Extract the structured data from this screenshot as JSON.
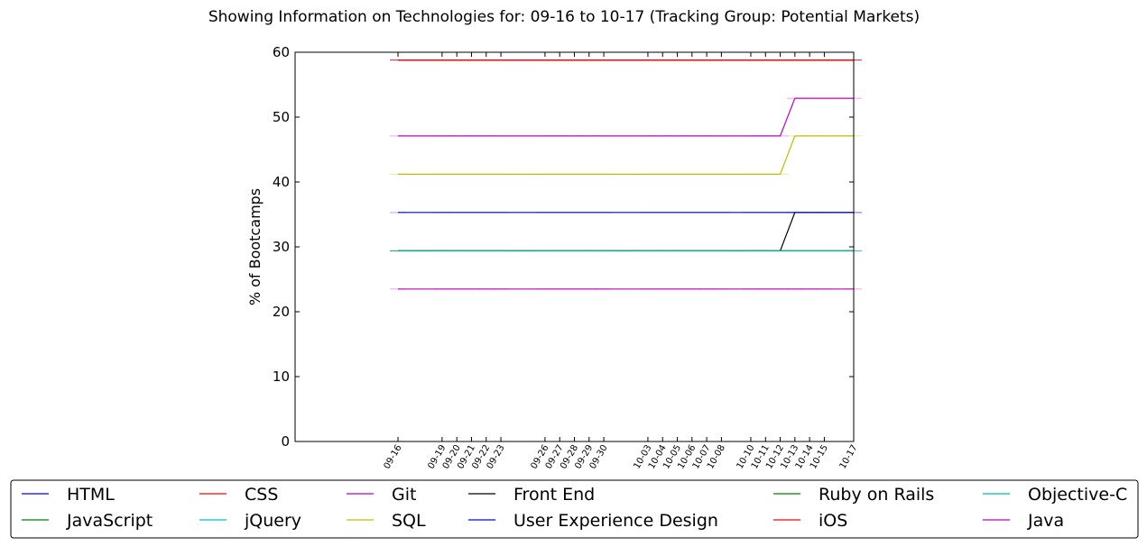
{
  "chart_data": {
    "type": "line",
    "title": "Showing Information on Technologies for: 09-16 to 10-17 (Tracking Group: Potential Markets)",
    "xlabel": "",
    "ylabel": "% of Bootcamps",
    "ylim": [
      0,
      60
    ],
    "yticks": [
      0,
      10,
      20,
      30,
      40,
      50,
      60
    ],
    "xlim": [
      "2016-09-09",
      "2016-10-17"
    ],
    "x": [
      "09-16",
      "09-19",
      "09-20",
      "09-21",
      "09-22",
      "09-23",
      "09-26",
      "09-27",
      "09-28",
      "09-29",
      "09-30",
      "10-03",
      "10-04",
      "10-05",
      "10-06",
      "10-07",
      "10-08",
      "10-10",
      "10-11",
      "10-12",
      "10-13",
      "10-14",
      "10-15",
      "10-17"
    ],
    "grid": false,
    "legend_position": "bottom",
    "legend_columns": 6,
    "series": [
      {
        "name": "HTML",
        "color": "#0000ff",
        "values": [
          58.8,
          58.8,
          58.8,
          58.8,
          58.8,
          58.8,
          58.8,
          58.8,
          58.8,
          58.8,
          58.8,
          58.8,
          58.8,
          58.8,
          58.8,
          58.8,
          58.8,
          58.8,
          58.8,
          58.8,
          58.8,
          58.8,
          58.8,
          58.8
        ]
      },
      {
        "name": "JavaScript",
        "color": "#008000",
        "values": [
          58.8,
          58.8,
          58.8,
          58.8,
          58.8,
          58.8,
          58.8,
          58.8,
          58.8,
          58.8,
          58.8,
          58.8,
          58.8,
          58.8,
          58.8,
          58.8,
          58.8,
          58.8,
          58.8,
          58.8,
          58.8,
          58.8,
          58.8,
          58.8
        ]
      },
      {
        "name": "CSS",
        "color": "#ff0000",
        "values": [
          58.8,
          58.8,
          58.8,
          58.8,
          58.8,
          58.8,
          58.8,
          58.8,
          58.8,
          58.8,
          58.8,
          58.8,
          58.8,
          58.8,
          58.8,
          58.8,
          58.8,
          58.8,
          58.8,
          58.8,
          58.8,
          58.8,
          58.8,
          58.8
        ]
      },
      {
        "name": "jQuery",
        "color": "#00bfbf",
        "values": [
          29.4,
          29.4,
          29.4,
          29.4,
          29.4,
          29.4,
          29.4,
          29.4,
          29.4,
          29.4,
          29.4,
          29.4,
          29.4,
          29.4,
          29.4,
          29.4,
          29.4,
          29.4,
          29.4,
          29.4,
          29.4,
          29.4,
          29.4,
          29.4
        ]
      },
      {
        "name": "Git",
        "color": "#bf00bf",
        "values": [
          47.1,
          47.1,
          47.1,
          47.1,
          47.1,
          47.1,
          47.1,
          47.1,
          47.1,
          47.1,
          47.1,
          47.1,
          47.1,
          47.1,
          47.1,
          47.1,
          47.1,
          47.1,
          47.1,
          47.1,
          52.9,
          52.9,
          52.9,
          52.9
        ]
      },
      {
        "name": "SQL",
        "color": "#bfbf00",
        "values": [
          41.2,
          41.2,
          41.2,
          41.2,
          41.2,
          41.2,
          41.2,
          41.2,
          41.2,
          41.2,
          41.2,
          41.2,
          41.2,
          41.2,
          41.2,
          41.2,
          41.2,
          41.2,
          41.2,
          41.2,
          47.1,
          47.1,
          47.1,
          47.1
        ]
      },
      {
        "name": "Front End",
        "color": "#000000",
        "values": [
          29.4,
          29.4,
          29.4,
          29.4,
          29.4,
          29.4,
          29.4,
          29.4,
          29.4,
          29.4,
          29.4,
          29.4,
          29.4,
          29.4,
          29.4,
          29.4,
          29.4,
          29.4,
          29.4,
          29.4,
          35.3,
          35.3,
          35.3,
          35.3
        ]
      },
      {
        "name": "User Experience Design",
        "color": "#0000ff",
        "values": [
          35.3,
          35.3,
          35.3,
          35.3,
          35.3,
          35.3,
          35.3,
          35.3,
          35.3,
          35.3,
          35.3,
          35.3,
          35.3,
          35.3,
          35.3,
          35.3,
          35.3,
          35.3,
          35.3,
          35.3,
          35.3,
          35.3,
          35.3,
          35.3
        ]
      },
      {
        "name": "Ruby on Rails",
        "color": "#008000",
        "values": [
          29.4,
          29.4,
          29.4,
          29.4,
          29.4,
          29.4,
          29.4,
          29.4,
          29.4,
          29.4,
          29.4,
          29.4,
          29.4,
          29.4,
          29.4,
          29.4,
          29.4,
          29.4,
          29.4,
          29.4,
          29.4,
          29.4,
          29.4,
          29.4
        ]
      },
      {
        "name": "iOS",
        "color": "#ff0000",
        "values": [
          58.8,
          58.8,
          58.8,
          58.8,
          58.8,
          58.8,
          58.8,
          58.8,
          58.8,
          58.8,
          58.8,
          58.8,
          58.8,
          58.8,
          58.8,
          58.8,
          58.8,
          58.8,
          58.8,
          58.8,
          58.8,
          58.8,
          58.8,
          58.8
        ]
      },
      {
        "name": "Objective-C",
        "color": "#00bfa0",
        "values": [
          29.4,
          29.4,
          29.4,
          29.4,
          29.4,
          29.4,
          29.4,
          29.4,
          29.4,
          29.4,
          29.4,
          29.4,
          29.4,
          29.4,
          29.4,
          29.4,
          29.4,
          29.4,
          29.4,
          29.4,
          29.4,
          29.4,
          29.4,
          29.4
        ]
      },
      {
        "name": "Java",
        "color": "#bf00bf",
        "values": [
          23.5,
          23.5,
          23.5,
          23.5,
          23.5,
          23.5,
          23.5,
          23.5,
          23.5,
          23.5,
          23.5,
          23.5,
          23.5,
          23.5,
          23.5,
          23.5,
          23.5,
          23.5,
          23.5,
          23.5,
          23.5,
          23.5,
          23.5,
          23.5
        ]
      }
    ]
  }
}
